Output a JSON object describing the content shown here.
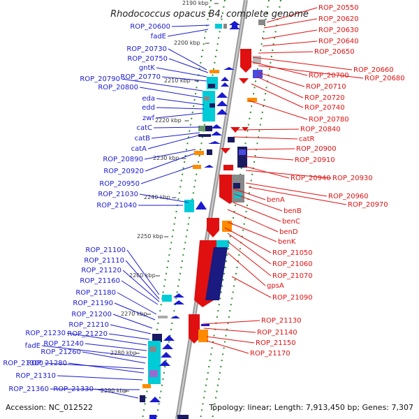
{
  "title": "Rhodococcus opacus B4, complete genome",
  "footer": {
    "accession": "Accession: NC_012522",
    "summary": "Topology: linear; Length: 7,913,450 bp; Genes: 7,307"
  },
  "ticks": [
    "2190 kbp",
    "2200 kbp",
    "2210 kbp",
    "2220 kbp",
    "2230 kbp",
    "2240 kbp",
    "2250 kbp",
    "2260 kbp",
    "2270 kbp",
    "2280 kbp",
    "2290 kbp"
  ],
  "left_genes": [
    "ROP_20600",
    "fadE",
    "ROP_20730",
    "ROP_20750",
    "gntK",
    "ROP_20770",
    "ROP_20790",
    "ROP_20800",
    "eda",
    "edd",
    "zwf",
    "catC",
    "catB",
    "catA",
    "ROP_20890",
    "ROP_20920",
    "ROP_20950",
    "ROP_21030",
    "ROP_21040",
    "ROP_21100",
    "ROP_21110",
    "ROP_21120",
    "ROP_21160",
    "ROP_21180",
    "ROP_21190",
    "ROP_21200",
    "ROP_21210",
    "ROP_21220",
    "ROP_21230",
    "ROP_21240",
    "fadE",
    "ROP_21260",
    "ROP_21300",
    "ROP_21280",
    "ROP_21310",
    "ROP_21360",
    "ROP_21330"
  ],
  "right_genes": [
    "ROP_20550",
    "ROP_20620",
    "ROP_20630",
    "ROP_20640",
    "ROP_20650",
    "ROP_20660",
    "ROP_20700",
    "ROP_20680",
    "ROP_20710",
    "ROP_20720",
    "ROP_20740",
    "ROP_20780",
    "ROP_20840",
    "catR",
    "ROP_20900",
    "ROP_20910",
    "ROP_20940",
    "ROP_20930",
    "ROP_20960",
    "ROP_20970",
    "benA",
    "benB",
    "benC",
    "benD",
    "benK",
    "ROP_21050",
    "ROP_21060",
    "ROP_21070",
    "gpsA",
    "ROP_21090",
    "ROP_21130",
    "ROP_21140",
    "ROP_21150",
    "ROP_21170"
  ],
  "colors": {
    "forward": "#1a1ad0",
    "reverse": "#e01010",
    "backbone": "#999999",
    "track_dots": "#2a8a2a"
  }
}
